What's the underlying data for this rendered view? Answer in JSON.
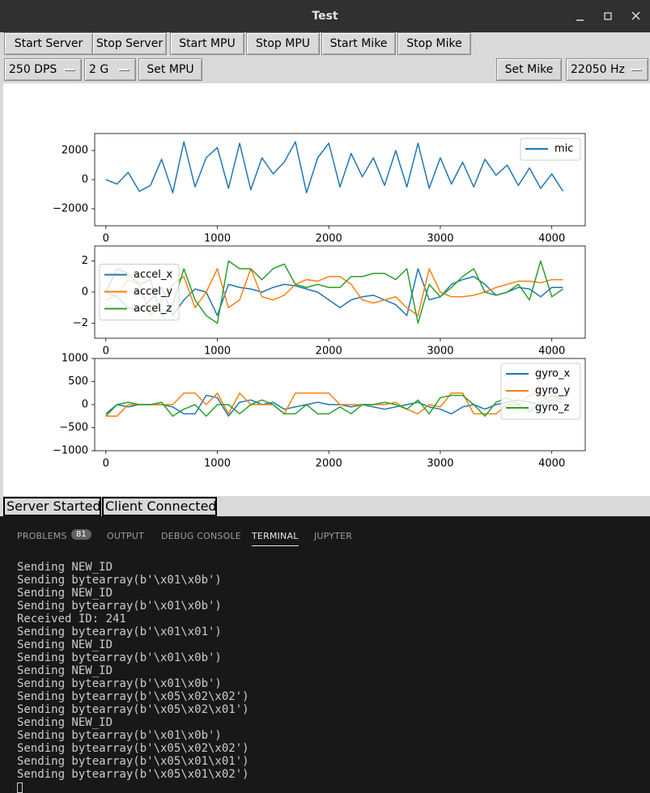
{
  "window": {
    "title": "Test"
  },
  "toolbar": {
    "buttons": [
      "Start Server",
      "Stop Server",
      "Start MPU",
      "Stop MPU",
      "Start Mike",
      "Stop Mike"
    ],
    "gyro_range": "250 DPS",
    "accel_range": "2 G",
    "set_mpu": "Set MPU",
    "set_mike": "Set Mike",
    "sample_rate": "22050 Hz"
  },
  "chart_data": [
    {
      "type": "line",
      "legend": "upper right",
      "x": [
        0,
        100,
        200,
        300,
        400,
        500,
        600,
        700,
        800,
        900,
        1000,
        1100,
        1200,
        1300,
        1400,
        1500,
        1600,
        1700,
        1800,
        1900,
        2000,
        2100,
        2200,
        2300,
        2400,
        2500,
        2600,
        2700,
        2800,
        2900,
        3000,
        3100,
        3200,
        3300,
        3400,
        3500,
        3600,
        3700,
        3800,
        3900,
        4000,
        4100
      ],
      "xlim": [
        -100,
        4300
      ],
      "xticks": [
        0,
        1000,
        2000,
        3000,
        4000
      ],
      "ylim": [
        -3167,
        3167
      ],
      "yticks": [
        {
          "value": -2000,
          "label": "−2000"
        },
        0,
        2000
      ],
      "series": [
        {
          "name": "mic",
          "color": "#1f77b4",
          "values": [
            0,
            -300,
            500,
            -800,
            -400,
            1400,
            -900,
            2600,
            -500,
            1500,
            2200,
            -600,
            2500,
            -700,
            1500,
            400,
            1200,
            2600,
            -900,
            1500,
            2500,
            -500,
            1800,
            200,
            1500,
            -400,
            2000,
            -500,
            2500,
            -600,
            1500,
            -300,
            1200,
            -500,
            1400,
            300,
            1000,
            -400,
            800,
            -600,
            400,
            -800
          ]
        }
      ]
    },
    {
      "type": "line",
      "legend": "center left",
      "x": [
        0,
        100,
        200,
        300,
        400,
        500,
        600,
        700,
        800,
        900,
        1000,
        1100,
        1200,
        1300,
        1400,
        1500,
        1600,
        1700,
        1800,
        1900,
        2000,
        2100,
        2200,
        2300,
        2400,
        2500,
        2600,
        2700,
        2800,
        2900,
        3000,
        3100,
        3200,
        3300,
        3400,
        3500,
        3600,
        3700,
        3800,
        3900,
        4000,
        4100
      ],
      "xlim": [
        -100,
        4300
      ],
      "xticks": [
        0,
        1000,
        2000,
        3000,
        4000
      ],
      "ylim": [
        -2.96,
        2.96
      ],
      "yticks": [
        {
          "value": -2,
          "label": "−2"
        },
        0,
        2
      ],
      "series": [
        {
          "name": "accel_x",
          "color": "#1f77b4",
          "values": [
            0,
            -0.3,
            -1.0,
            -1.2,
            -0.5,
            0.3,
            -1.5,
            -0.5,
            0.2,
            0.0,
            -1.5,
            0.5,
            0.3,
            0.2,
            0.0,
            0.3,
            0.5,
            0.4,
            0.2,
            0.0,
            -0.5,
            -1.0,
            -0.5,
            -0.3,
            -0.2,
            -0.5,
            -0.8,
            -1.5,
            1.5,
            -0.5,
            -0.3,
            0.5,
            0.8,
            1.0,
            0.5,
            -0.2,
            0.0,
            0.3,
            0.2,
            -0.3,
            0.3,
            0.3
          ]
        },
        {
          "name": "accel_y",
          "color": "#ff7f0e",
          "values": [
            -0.5,
            -0.2,
            0.8,
            0.5,
            -1.5,
            -0.5,
            0.5,
            1.0,
            -1.0,
            0.0,
            1.5,
            -1.0,
            -0.5,
            1.5,
            -0.3,
            -0.5,
            -0.2,
            0.5,
            0.8,
            0.7,
            1.0,
            1.0,
            0.5,
            -0.5,
            -0.7,
            -0.5,
            -0.3,
            -1.0,
            -1.5,
            1.5,
            0.0,
            -0.3,
            -0.3,
            -0.2,
            0.0,
            0.3,
            0.5,
            0.7,
            0.7,
            0.6,
            0.8,
            0.8
          ]
        },
        {
          "name": "accel_z",
          "color": "#2ca02c",
          "values": [
            0.0,
            1.5,
            1.2,
            0.5,
            0.8,
            -1.5,
            -0.8,
            1.5,
            -0.5,
            -1.5,
            -2.0,
            2.0,
            1.5,
            1.5,
            0.8,
            1.5,
            1.8,
            0.5,
            0.3,
            0.5,
            0.3,
            0.3,
            1.0,
            1.0,
            1.2,
            1.2,
            0.8,
            1.5,
            -2.0,
            0.5,
            -0.3,
            0.3,
            1.0,
            1.5,
            0.0,
            -0.2,
            0.0,
            0.5,
            -0.5,
            2.0,
            -0.3,
            0.2
          ]
        }
      ]
    },
    {
      "type": "line",
      "legend": "upper right",
      "x": [
        0,
        100,
        200,
        300,
        400,
        500,
        600,
        700,
        800,
        900,
        1000,
        1100,
        1200,
        1300,
        1400,
        1500,
        1600,
        1700,
        1800,
        1900,
        2000,
        2100,
        2200,
        2300,
        2400,
        2500,
        2600,
        2700,
        2800,
        2900,
        3000,
        3100,
        3200,
        3300,
        3400,
        3500,
        3600,
        3700,
        3800,
        3900,
        4000,
        4100
      ],
      "xlim": [
        -100,
        4300
      ],
      "xticks": [
        0,
        1000,
        2000,
        3000,
        4000
      ],
      "ylim": [
        -1000,
        1000
      ],
      "yticks": [
        {
          "value": -1000,
          "label": "−1000"
        },
        {
          "value": -500,
          "label": "−500"
        },
        0,
        500,
        1000
      ],
      "series": [
        {
          "name": "gyro_x",
          "color": "#1f77b4",
          "values": [
            -200,
            0,
            -50,
            0,
            0,
            0,
            -50,
            -200,
            -200,
            200,
            150,
            -250,
            50,
            100,
            0,
            50,
            -100,
            -50,
            0,
            50,
            0,
            0,
            -50,
            0,
            -50,
            -100,
            -50,
            0,
            50,
            -50,
            -100,
            -200,
            -50,
            0,
            -100,
            0,
            50,
            100,
            50,
            0,
            100,
            50
          ]
        },
        {
          "name": "gyro_y",
          "color": "#ff7f0e",
          "values": [
            -250,
            -250,
            0,
            0,
            0,
            0,
            0,
            250,
            250,
            0,
            250,
            -200,
            250,
            0,
            0,
            0,
            -200,
            250,
            250,
            250,
            250,
            0,
            0,
            0,
            0,
            0,
            50,
            -100,
            -200,
            0,
            -50,
            250,
            250,
            -200,
            -200,
            -200,
            0,
            0,
            200,
            250,
            0,
            200
          ]
        },
        {
          "name": "gyro_z",
          "color": "#2ca02c",
          "values": [
            -250,
            0,
            50,
            0,
            0,
            50,
            -250,
            -100,
            0,
            -250,
            0,
            0,
            -200,
            0,
            100,
            0,
            -200,
            -200,
            0,
            -200,
            -200,
            -50,
            -200,
            0,
            0,
            50,
            0,
            -100,
            100,
            -200,
            150,
            200,
            200,
            0,
            -250,
            50,
            150,
            0,
            -150,
            50,
            200,
            100
          ]
        }
      ]
    }
  ],
  "status": {
    "server": "Server Started",
    "client": "Client Connected"
  },
  "panel": {
    "tabs": [
      "PROBLEMS",
      "OUTPUT",
      "DEBUG CONSOLE",
      "TERMINAL",
      "JUPYTER"
    ],
    "problems_count": "81",
    "terminal_lines": [
      "Sending NEW_ID",
      "Sending bytearray(b'\\x01\\x0b')",
      "Sending NEW_ID",
      "Sending bytearray(b'\\x01\\x0b')",
      "Received ID: 241",
      "Sending bytearray(b'\\x01\\x01')",
      "Sending NEW_ID",
      "Sending bytearray(b'\\x01\\x0b')",
      "Sending NEW_ID",
      "Sending bytearray(b'\\x01\\x0b')",
      "Sending bytearray(b'\\x05\\x02\\x02')",
      "Sending bytearray(b'\\x05\\x02\\x01')",
      "Sending NEW_ID",
      "Sending bytearray(b'\\x01\\x0b')",
      "Sending bytearray(b'\\x05\\x02\\x02')",
      "Sending bytearray(b'\\x05\\x01\\x01')",
      "Sending bytearray(b'\\x05\\x01\\x02')"
    ]
  }
}
